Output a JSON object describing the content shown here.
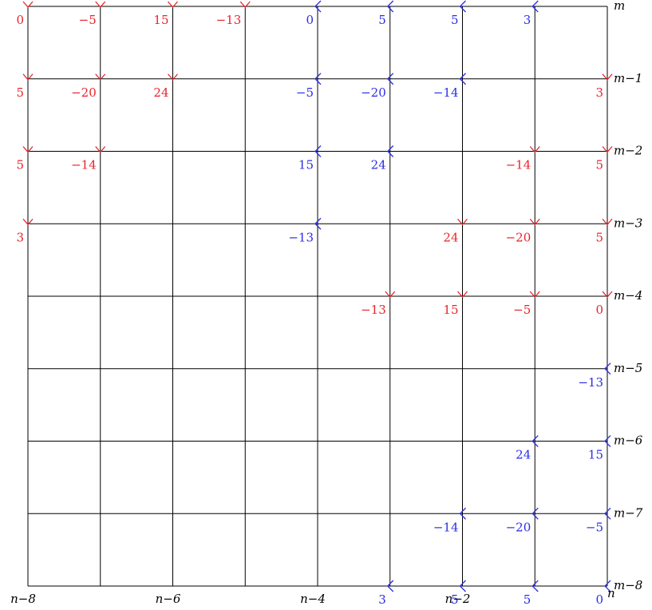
{
  "colors": {
    "red": "#e8242c",
    "blue": "#2a2ee6",
    "grid": "#000000"
  },
  "grid": {
    "cols": 8,
    "rows": 8
  },
  "col_labels": [
    {
      "col": 0,
      "text": "n−8"
    },
    {
      "col": 2,
      "text": "n−6"
    },
    {
      "col": 4,
      "text": "n−4"
    },
    {
      "col": 6,
      "text": "n−2"
    },
    {
      "col": 8,
      "text": "n"
    }
  ],
  "row_labels": [
    "m",
    "m−1",
    "m−2",
    "m−3",
    "m−4",
    "m−5",
    "m−6",
    "m−7",
    "m−8"
  ],
  "red_marks": [
    {
      "col": 0,
      "row": 0,
      "label": "0"
    },
    {
      "col": 1,
      "row": 0,
      "label": "−5"
    },
    {
      "col": 2,
      "row": 0,
      "label": "15"
    },
    {
      "col": 3,
      "row": 0,
      "label": "−13"
    },
    {
      "col": 0,
      "row": 1,
      "label": "5"
    },
    {
      "col": 1,
      "row": 1,
      "label": "−20"
    },
    {
      "col": 2,
      "row": 1,
      "label": "24"
    },
    {
      "col": 8,
      "row": 1,
      "label": "3"
    },
    {
      "col": 0,
      "row": 2,
      "label": "5"
    },
    {
      "col": 1,
      "row": 2,
      "label": "−14"
    },
    {
      "col": 7,
      "row": 2,
      "label": "−14"
    },
    {
      "col": 8,
      "row": 2,
      "label": "5"
    },
    {
      "col": 0,
      "row": 3,
      "label": "3"
    },
    {
      "col": 6,
      "row": 3,
      "label": "24"
    },
    {
      "col": 7,
      "row": 3,
      "label": "−20"
    },
    {
      "col": 8,
      "row": 3,
      "label": "5"
    },
    {
      "col": 5,
      "row": 4,
      "label": "−13"
    },
    {
      "col": 6,
      "row": 4,
      "label": "15"
    },
    {
      "col": 7,
      "row": 4,
      "label": "−5"
    },
    {
      "col": 8,
      "row": 4,
      "label": "0"
    }
  ],
  "blue_marks": [
    {
      "col": 4,
      "row": 0,
      "label": "0"
    },
    {
      "col": 5,
      "row": 0,
      "label": "5"
    },
    {
      "col": 6,
      "row": 0,
      "label": "5"
    },
    {
      "col": 7,
      "row": 0,
      "label": "3"
    },
    {
      "col": 4,
      "row": 1,
      "label": "−5"
    },
    {
      "col": 5,
      "row": 1,
      "label": "−20"
    },
    {
      "col": 6,
      "row": 1,
      "label": "−14"
    },
    {
      "col": 4,
      "row": 2,
      "label": "15"
    },
    {
      "col": 5,
      "row": 2,
      "label": "24"
    },
    {
      "col": 4,
      "row": 3,
      "label": "−13"
    },
    {
      "col": 8,
      "row": 5,
      "label": "−13"
    },
    {
      "col": 7,
      "row": 6,
      "label": "24"
    },
    {
      "col": 8,
      "row": 6,
      "label": "15"
    },
    {
      "col": 6,
      "row": 7,
      "label": "−14"
    },
    {
      "col": 7,
      "row": 7,
      "label": "−20"
    },
    {
      "col": 8,
      "row": 7,
      "label": "−5"
    },
    {
      "col": 5,
      "row": 8,
      "label": "3"
    },
    {
      "col": 6,
      "row": 8,
      "label": "5"
    },
    {
      "col": 7,
      "row": 8,
      "label": "5"
    },
    {
      "col": 8,
      "row": 8,
      "label": "0"
    }
  ]
}
